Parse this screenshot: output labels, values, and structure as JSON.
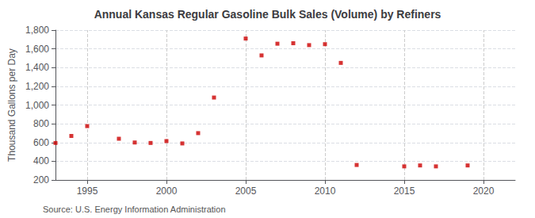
{
  "chart_data": {
    "type": "scatter",
    "title": "Annual Kansas Regular Gasoline Bulk Sales (Volume) by Refiners",
    "ylabel": "Thousand Gallons per Day",
    "annotation": "Source: U.S. Energy Information Administration",
    "x": [
      1993,
      1994,
      1995,
      1997,
      1998,
      1999,
      2000,
      2001,
      2002,
      2003,
      2005,
      2006,
      2007,
      2008,
      2009,
      2010,
      2011,
      2012,
      2015,
      2016,
      2017,
      2019
    ],
    "values": [
      595,
      670,
      775,
      640,
      600,
      595,
      615,
      590,
      700,
      1080,
      1710,
      1530,
      1655,
      1660,
      1640,
      1650,
      1450,
      360,
      345,
      355,
      345,
      355
    ],
    "color": "#cc0000",
    "marker": "square",
    "xlim": [
      1993,
      2022
    ],
    "xticks": [
      1995,
      2000,
      2005,
      2010,
      2015,
      2020
    ],
    "ylim": [
      200,
      1800
    ],
    "yticks": [
      200,
      400,
      600,
      800,
      {
        "value": 1000,
        "label": "1,000"
      },
      {
        "value": 1200,
        "label": "1,200"
      },
      {
        "value": 1400,
        "label": "1,400"
      },
      {
        "value": 1600,
        "label": "1,600"
      },
      {
        "value": 1800,
        "label": "1,800"
      }
    ],
    "grid": true
  }
}
